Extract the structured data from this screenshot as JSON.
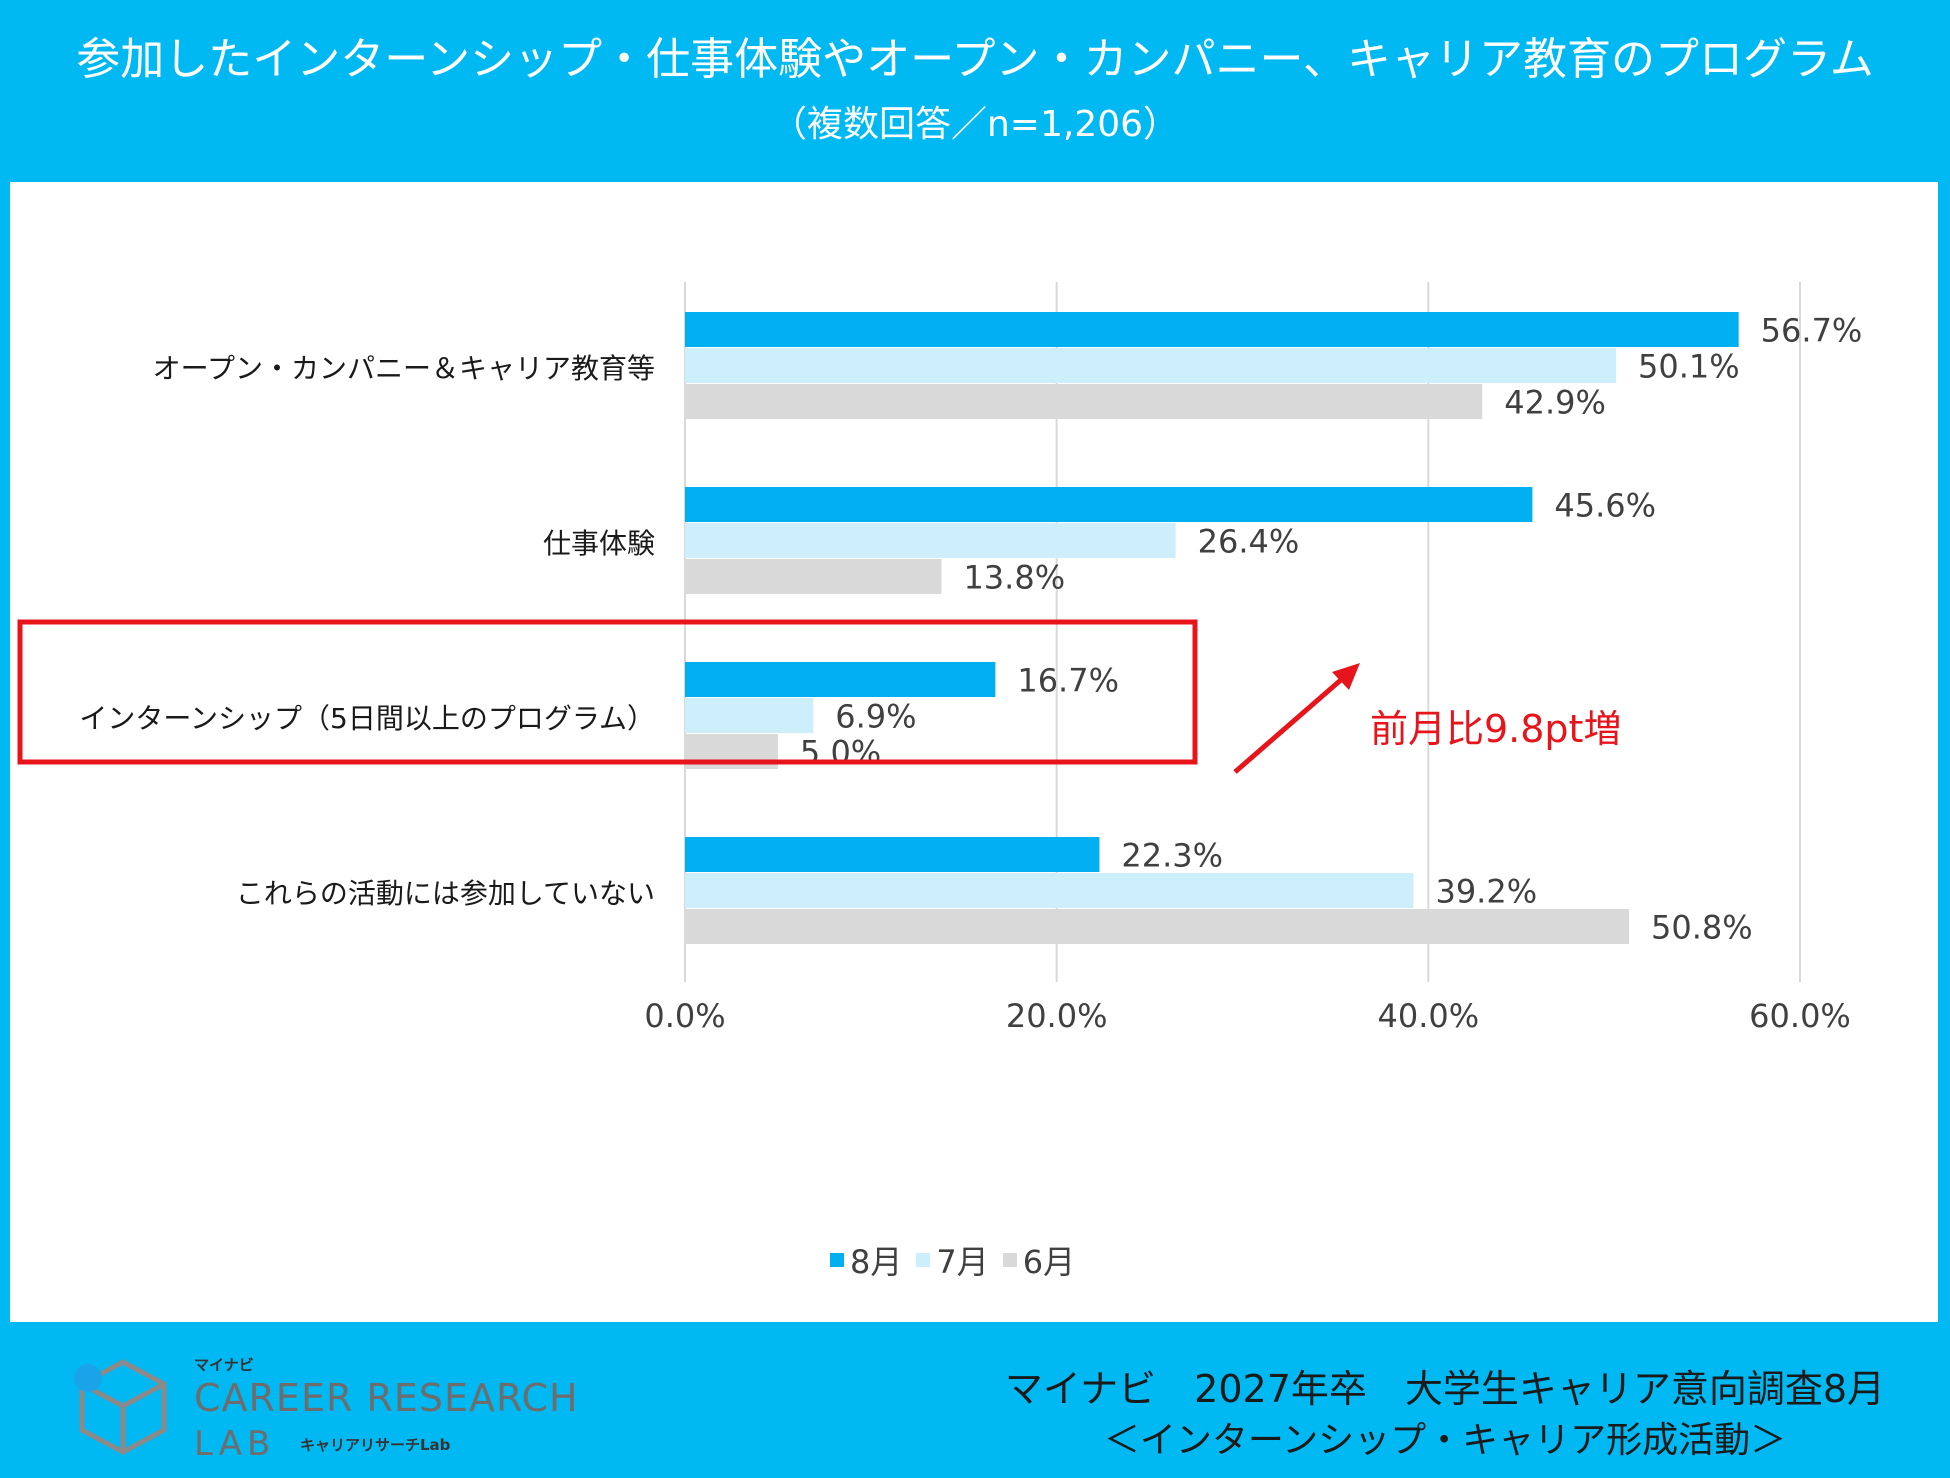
{
  "header": {
    "title": "参加したインターンシップ・仕事体験やオープン・カンパニー、キャリア教育のプログラム",
    "subtitle": "（複数回答／n=1,206）"
  },
  "chart_data": {
    "type": "bar",
    "orientation": "horizontal",
    "categories": [
      "オープン・カンパニー＆キャリア教育等",
      "仕事体験",
      "インターンシップ（5日間以上のプログラム）",
      "これらの活動には参加していない"
    ],
    "series": [
      {
        "name": "8月",
        "color": "#00b0f0",
        "values": [
          56.7,
          45.6,
          16.7,
          22.3
        ],
        "labels": [
          "56.7%",
          "45.6%",
          "16.7%",
          "22.3%"
        ]
      },
      {
        "name": "7月",
        "color": "#cdeefb",
        "values": [
          50.1,
          26.4,
          6.9,
          39.2
        ],
        "labels": [
          "50.1%",
          "26.4%",
          "6.9%",
          "39.2%"
        ]
      },
      {
        "name": "6月",
        "color": "#d9d9d9",
        "values": [
          42.9,
          13.8,
          5.0,
          50.8
        ],
        "labels": [
          "42.9%",
          "13.8%",
          "5.0%",
          "50.8%"
        ]
      }
    ],
    "xlim": [
      0,
      60
    ],
    "xticks": [
      0,
      20,
      40,
      60
    ],
    "xtick_labels": [
      "0.0%",
      "20.0%",
      "40.0%",
      "60.0%"
    ],
    "grid": "vertical",
    "legend_position": "bottom",
    "highlight_category": "インターンシップ（5日間以上のプログラム）",
    "highlight_color": "#e8141b",
    "annotation": "前月比9.8pt増"
  },
  "source": {
    "line1": "マイナビ　2027年卒　大学生キャリア意向調査8月",
    "line2": "＜インターンシップ・キャリア形成活動＞"
  },
  "logo": {
    "small": "マイナビ",
    "main": "CAREER RESEARCH",
    "lab": "LAB",
    "jp": "キャリアリサーチLab"
  }
}
